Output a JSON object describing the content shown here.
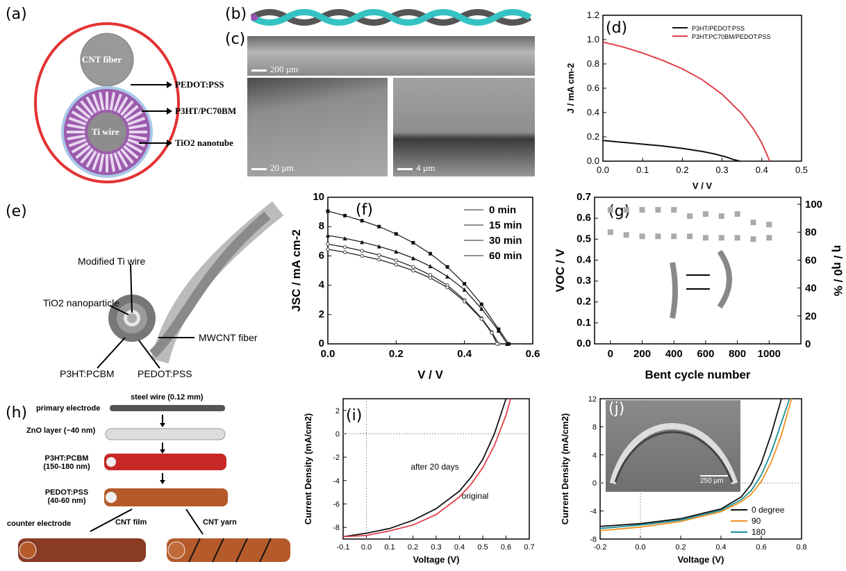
{
  "labels": {
    "a": "(a)",
    "b": "(b)",
    "c": "(c)",
    "d": "(d)",
    "e": "(e)",
    "f": "(f)",
    "g": "(g)",
    "h": "(h)",
    "i": "(i)",
    "j": "(j)"
  },
  "panel_a": {
    "cnt": "CNT fiber",
    "ti": "Ti wire",
    "l1": "PEDOT:PSS",
    "l2": "P3HT/PC70BM",
    "l3": "TiO2 nanotube"
  },
  "panel_c": {
    "s1": "200  µm",
    "s2": "20  µm",
    "s3": "4  µm"
  },
  "panel_e": {
    "l1": "Modified Ti wire",
    "l2": "TiO2 nanoparticle",
    "l3": "MWCNT fiber",
    "l4": "P3HT:PCBM",
    "l5": "PEDOT:PSS"
  },
  "panel_h": {
    "r1": "primary electrode",
    "r1t": "steel wire (0.12 mm)",
    "r2": "ZnO layer (~40 nm)",
    "r3a": "P3HT:PCBM",
    "r3b": "(150-180 nm)",
    "r4a": "PEDOT:PSS",
    "r4b": "(40-60 nm)",
    "ce": "counter electrode",
    "f1": "CNT film",
    "f2": "CNT yarn"
  },
  "chart_data": [
    {
      "id": "d",
      "type": "line",
      "xlabel": "V / V",
      "ylabel": "J / mA cm-2",
      "xlim": [
        0,
        0.5
      ],
      "ylim": [
        0,
        1.2
      ],
      "xticks": [
        "0.0",
        "0.1",
        "0.2",
        "0.3",
        "0.4",
        "0.5"
      ],
      "yticks": [
        "0.0",
        "0.2",
        "0.4",
        "0.6",
        "0.8",
        "1.0",
        "1.2"
      ],
      "legend": [
        "P3HT/PEDOT:PSS",
        "P3HT:PC70BM/PEDOT:PSS"
      ],
      "series": [
        {
          "name": "P3HT/PEDOT:PSS",
          "color": "#111111",
          "x": [
            0,
            0.05,
            0.1,
            0.15,
            0.2,
            0.25,
            0.28,
            0.31,
            0.33,
            0.345
          ],
          "y": [
            0.17,
            0.155,
            0.14,
            0.125,
            0.105,
            0.08,
            0.06,
            0.035,
            0.012,
            0.0
          ]
        },
        {
          "name": "P3HT:PC70BM/PEDOT:PSS",
          "color": "#e0404a",
          "x": [
            0,
            0.05,
            0.1,
            0.15,
            0.2,
            0.25,
            0.3,
            0.35,
            0.38,
            0.4,
            0.42
          ],
          "y": [
            0.98,
            0.94,
            0.89,
            0.83,
            0.76,
            0.67,
            0.55,
            0.39,
            0.26,
            0.15,
            0.0
          ]
        }
      ]
    },
    {
      "id": "f",
      "type": "line",
      "xlabel": "V / V",
      "ylabel": "JSC / mA cm-2",
      "xlim": [
        0,
        0.6
      ],
      "ylim": [
        0,
        10
      ],
      "xticks": [
        "0.0",
        "0.2",
        "0.4",
        "0.6"
      ],
      "yticks": [
        "0",
        "2",
        "4",
        "6",
        "8",
        "10"
      ],
      "legend": [
        "0 min",
        "15 min",
        "30 min",
        "60 min"
      ],
      "series": [
        {
          "name": "0 min",
          "x": [
            0,
            0.05,
            0.1,
            0.15,
            0.2,
            0.25,
            0.3,
            0.35,
            0.4,
            0.45,
            0.48,
            0.5
          ],
          "y": [
            6.8,
            6.6,
            6.35,
            6.05,
            5.7,
            5.25,
            4.7,
            4.0,
            3.0,
            1.75,
            0.8,
            0
          ]
        },
        {
          "name": "15 min",
          "x": [
            0,
            0.05,
            0.1,
            0.15,
            0.2,
            0.25,
            0.3,
            0.35,
            0.4,
            0.45,
            0.5,
            0.525
          ],
          "y": [
            7.4,
            7.2,
            6.95,
            6.65,
            6.3,
            5.85,
            5.3,
            4.6,
            3.7,
            2.4,
            0.9,
            0
          ]
        },
        {
          "name": "30 min",
          "x": [
            0,
            0.05,
            0.1,
            0.15,
            0.2,
            0.25,
            0.3,
            0.35,
            0.4,
            0.45,
            0.5,
            0.53
          ],
          "y": [
            9.05,
            8.75,
            8.4,
            8.0,
            7.5,
            6.9,
            6.15,
            5.25,
            4.1,
            2.7,
            1.0,
            0
          ]
        },
        {
          "name": "60 min",
          "x": [
            0,
            0.05,
            0.1,
            0.15,
            0.2,
            0.25,
            0.3,
            0.35,
            0.4,
            0.45,
            0.48,
            0.495
          ],
          "y": [
            6.45,
            6.25,
            6.0,
            5.75,
            5.4,
            5.0,
            4.5,
            3.85,
            2.9,
            1.7,
            0.75,
            0
          ]
        }
      ]
    },
    {
      "id": "g",
      "type": "scatter",
      "xlabel": "Bent cycle number",
      "ylabel": "VOC / V",
      "ylabel2": "η / η0 / %",
      "xlim": [
        -100,
        1200
      ],
      "ylim": [
        0,
        0.7
      ],
      "ylim2": [
        0,
        105
      ],
      "xticks": [
        "0",
        "200",
        "400",
        "600",
        "800",
        "1000"
      ],
      "yticks": [
        "0.0",
        "0.1",
        "0.2",
        "0.3",
        "0.4",
        "0.5",
        "0.6",
        "0.7"
      ],
      "yticks2": [
        "0",
        "20",
        "40",
        "60",
        "80",
        "100"
      ],
      "series": [
        {
          "name": "VOC",
          "x": [
            0,
            100,
            200,
            300,
            400,
            500,
            600,
            700,
            800,
            900,
            1000
          ],
          "y": [
            0.64,
            0.64,
            0.64,
            0.64,
            0.64,
            0.61,
            0.62,
            0.61,
            0.62,
            0.58,
            0.57
          ]
        },
        {
          "name": "η",
          "x": [
            0,
            100,
            200,
            300,
            400,
            500,
            600,
            700,
            800,
            900,
            1000
          ],
          "y": [
            80,
            78,
            77,
            77,
            77,
            77,
            76,
            76,
            76,
            75,
            76
          ]
        }
      ]
    },
    {
      "id": "i",
      "type": "line",
      "xlabel": "Voltage (V)",
      "ylabel": "Current Density (mA/cm2)",
      "xlim": [
        -0.1,
        0.7
      ],
      "ylim": [
        -9,
        3
      ],
      "xticks": [
        "-0.1",
        "0.0",
        "0.1",
        "0.2",
        "0.3",
        "0.4",
        "0.5",
        "0.6",
        "0.7"
      ],
      "yticks": [
        "-8",
        "-6",
        "-4",
        "-2",
        "0",
        "2"
      ],
      "annotations": [
        "after 20 days",
        "original"
      ],
      "series": [
        {
          "name": "after 20 days",
          "color": "#111111",
          "x": [
            -0.1,
            0.0,
            0.1,
            0.2,
            0.3,
            0.4,
            0.45,
            0.5,
            0.55,
            0.6
          ],
          "y": [
            -8.8,
            -8.5,
            -8.1,
            -7.4,
            -6.4,
            -4.9,
            -3.7,
            -2.2,
            0.0,
            3.0
          ]
        },
        {
          "name": "original",
          "color": "#e0404a",
          "x": [
            -0.1,
            0.0,
            0.1,
            0.2,
            0.3,
            0.4,
            0.45,
            0.5,
            0.55,
            0.6,
            0.62
          ],
          "y": [
            -8.8,
            -8.7,
            -8.3,
            -7.8,
            -6.9,
            -5.4,
            -4.3,
            -2.9,
            -1.0,
            1.6,
            3.0
          ]
        }
      ]
    },
    {
      "id": "j",
      "type": "line",
      "xlabel": "Voltage (V)",
      "ylabel": "Current Density (mA/cm2)",
      "xlim": [
        -0.2,
        0.8
      ],
      "ylim": [
        -8,
        12
      ],
      "xticks": [
        "-0.2",
        "0.0",
        "0.2",
        "0.4",
        "0.6",
        "0.8"
      ],
      "yticks": [
        "-8",
        "-4",
        "0",
        "4",
        "8",
        "12"
      ],
      "legend": [
        "0 degree",
        "90",
        "180"
      ],
      "inset_scale": "250 µm",
      "series": [
        {
          "name": "0 degree",
          "color": "#111111",
          "x": [
            -0.2,
            0.0,
            0.2,
            0.4,
            0.5,
            0.55,
            0.6,
            0.65,
            0.7
          ],
          "y": [
            -6.2,
            -5.8,
            -5.1,
            -3.7,
            -2.0,
            -0.2,
            2.8,
            7.0,
            12
          ]
        },
        {
          "name": "90",
          "color": "#f0901e",
          "x": [
            -0.2,
            0.0,
            0.2,
            0.4,
            0.5,
            0.55,
            0.6,
            0.65,
            0.7,
            0.75
          ],
          "y": [
            -6.8,
            -6.3,
            -5.5,
            -4.1,
            -2.7,
            -1.6,
            0.2,
            3.0,
            6.8,
            12
          ]
        },
        {
          "name": "180",
          "color": "#1a8e96",
          "x": [
            -0.2,
            0.0,
            0.2,
            0.4,
            0.5,
            0.55,
            0.6,
            0.65,
            0.7,
            0.74
          ],
          "y": [
            -6.5,
            -6.0,
            -5.3,
            -3.9,
            -2.4,
            -1.1,
            1.1,
            4.4,
            8.6,
            12
          ]
        }
      ]
    }
  ]
}
